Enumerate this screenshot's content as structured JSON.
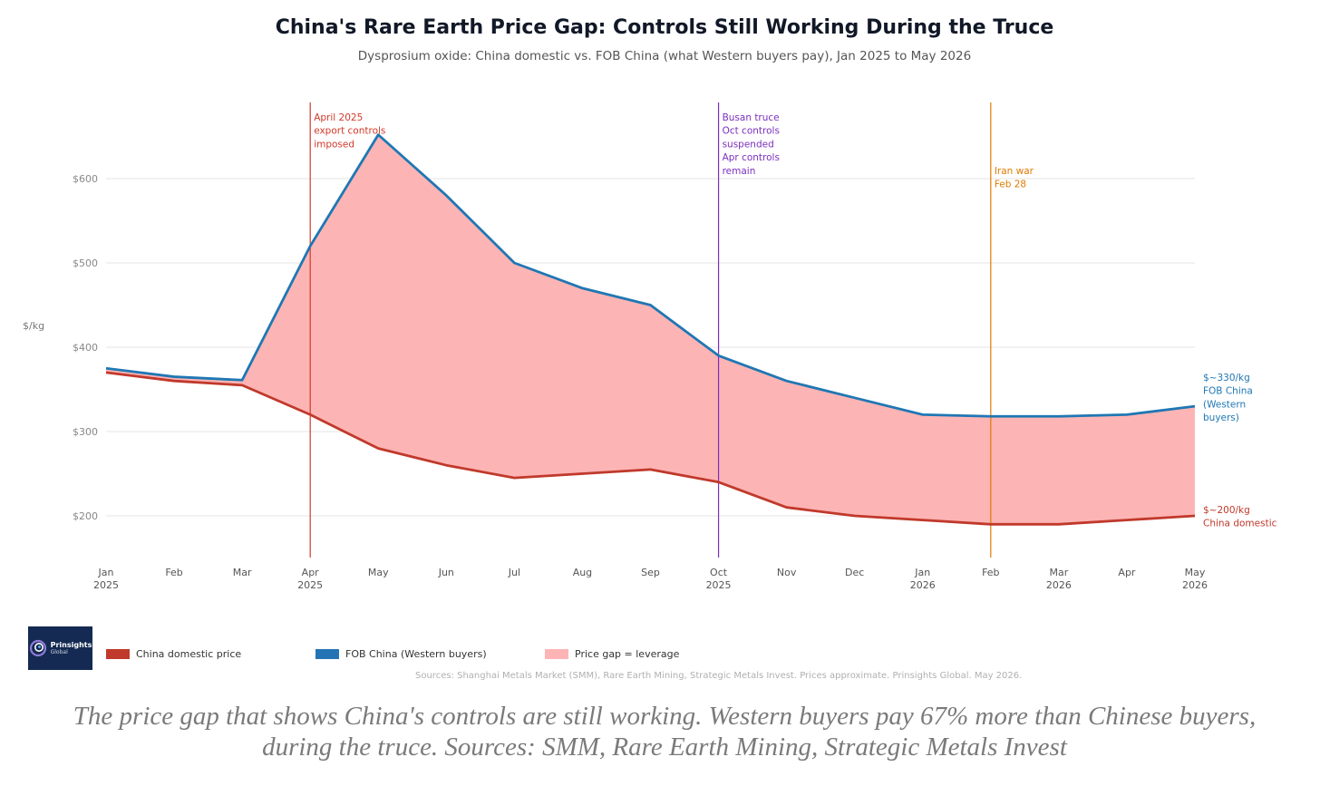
{
  "chart_data": {
    "type": "area",
    "title": "China's Rare Earth Price Gap: Controls Still Working During the Truce",
    "subtitle": "Dysprosium oxide: China domestic vs. FOB China (what Western buyers pay), Jan 2025 to May 2026",
    "ylabel": "$/kg",
    "ylim": [
      145,
      690
    ],
    "y_ticks": [
      {
        "value": 200,
        "label": "$200"
      },
      {
        "value": 300,
        "label": "$300"
      },
      {
        "value": 400,
        "label": "$400"
      },
      {
        "value": 500,
        "label": "$500"
      },
      {
        "value": 600,
        "label": "$600"
      }
    ],
    "categories": [
      {
        "month": "Jan",
        "year": "2025"
      },
      {
        "month": "Feb",
        "year": ""
      },
      {
        "month": "Mar",
        "year": ""
      },
      {
        "month": "Apr",
        "year": "2025"
      },
      {
        "month": "May",
        "year": ""
      },
      {
        "month": "Jun",
        "year": ""
      },
      {
        "month": "Jul",
        "year": ""
      },
      {
        "month": "Aug",
        "year": ""
      },
      {
        "month": "Sep",
        "year": ""
      },
      {
        "month": "Oct",
        "year": "2025"
      },
      {
        "month": "Nov",
        "year": ""
      },
      {
        "month": "Dec",
        "year": ""
      },
      {
        "month": "Jan",
        "year": "2026"
      },
      {
        "month": "Feb",
        "year": ""
      },
      {
        "month": "Mar",
        "year": "2026"
      },
      {
        "month": "Apr",
        "year": ""
      },
      {
        "month": "May",
        "year": "2026"
      }
    ],
    "series": [
      {
        "name": "FOB China (Western buyers)",
        "color": "#1f77b4",
        "values": [
          375,
          365,
          361,
          520,
          652,
          580,
          500,
          470,
          450,
          390,
          360,
          340,
          320,
          318,
          318,
          320,
          330
        ],
        "end_label": [
          "$~330/kg",
          "FOB China",
          "(Western",
          "buyers)"
        ]
      },
      {
        "name": "China domestic price",
        "color": "#c0392b",
        "values": [
          370,
          360,
          355,
          320,
          280,
          260,
          245,
          250,
          255,
          240,
          210,
          200,
          195,
          190,
          190,
          195,
          200
        ],
        "end_label": [
          "$~200/kg",
          "China domestic"
        ]
      }
    ],
    "gap_fill_color": "#fdb4b4",
    "annotations": [
      {
        "x_index": 3,
        "color": "#d23a2a",
        "lines": [
          "April 2025",
          "export controls",
          "imposed"
        ]
      },
      {
        "x_index": 9,
        "color": "#7b2fbe",
        "lines": [
          "Busan truce",
          "Oct controls",
          "suspended",
          "Apr controls",
          "remain"
        ]
      },
      {
        "x_index": 13,
        "color": "#e07b00",
        "lines": [
          "Iran war",
          "Feb 28"
        ]
      }
    ],
    "legend": [
      {
        "label": "China domestic price",
        "color": "#c0392b"
      },
      {
        "label": "FOB China (Western buyers)",
        "color": "#2474b5"
      },
      {
        "label": "Price gap = leverage",
        "color": "#fdb4b4"
      }
    ],
    "legend_position": "bottom",
    "grid": true
  },
  "logo": {
    "name": "Prinsights",
    "sub": "Global"
  },
  "source_note": "Sources: Shanghai Metals Market (SMM), Rare Earth Mining, Strategic Metals Invest. Prices approximate. Prinsights Global. May 2026.",
  "caption_line1": "The price gap that shows China's controls are still working. Western buyers pay 67% more than Chinese buyers,",
  "caption_line2": "during the truce. Sources: SMM, Rare Earth Mining, Strategic Metals Invest"
}
